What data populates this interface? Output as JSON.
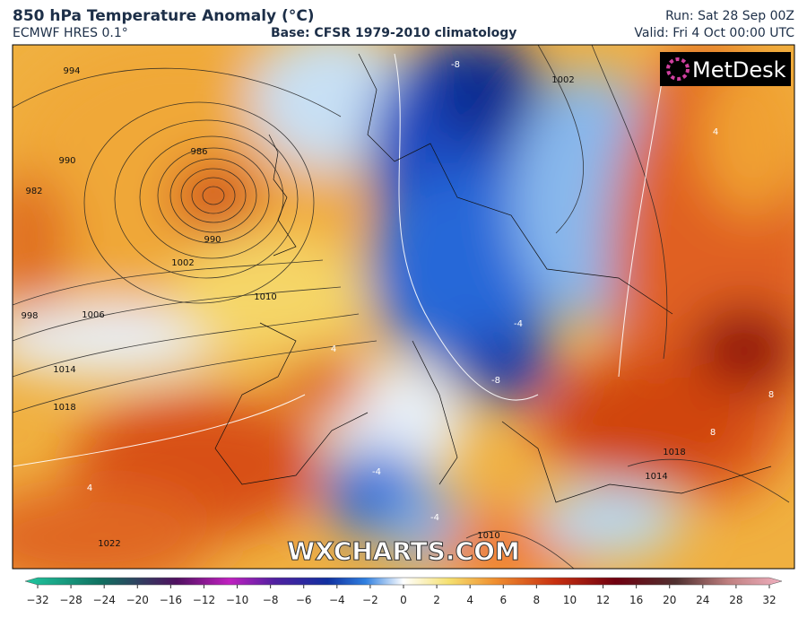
{
  "header": {
    "title": "850 hPa Temperature Anomaly (°C)",
    "model": "ECMWF HRES 0.1°",
    "base": "Base: CFSR 1979-2010 climatology",
    "run": "Run: Sat 28 Sep 00Z",
    "valid": "Valid: Fri 4 Oct 00:00 UTC"
  },
  "logo": "MetDesk",
  "watermark": "WXCHARTS.COM",
  "isobar_labels": [
    "994",
    "990",
    "986",
    "982",
    "990",
    "1002",
    "1010",
    "998",
    "1006",
    "1014",
    "1018",
    "1022",
    "1002",
    "1010",
    "1014",
    "1018"
  ],
  "anomaly_labels": [
    "-8",
    "-8",
    "-4",
    "4",
    "8",
    "8",
    "4",
    "-4",
    "-4",
    "4"
  ],
  "colorbar": {
    "ticks": [
      "−32",
      "−28",
      "−24",
      "−20",
      "−16",
      "−12",
      "−10",
      "−8",
      "−6",
      "−4",
      "−2",
      "0",
      "2",
      "4",
      "6",
      "8",
      "10",
      "12",
      "16",
      "20",
      "24",
      "28",
      "32"
    ]
  }
}
